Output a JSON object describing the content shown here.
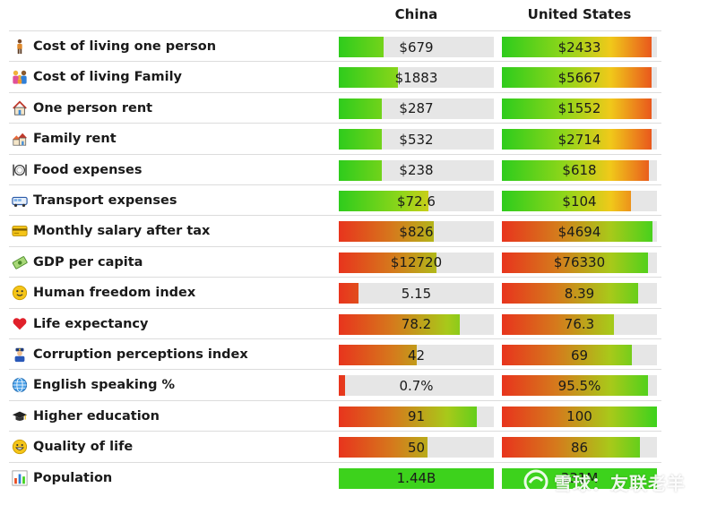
{
  "columns": [
    "China",
    "United States"
  ],
  "colors": {
    "cost_gradient": "linear-gradient(90deg,#2ecc1c 0%,#8ed61a 40%,#f0c91a 70%,#e8491d 100%)",
    "benefit_gradient": "linear-gradient(90deg,#e8341d 0%,#d57a1c 35%,#a8c91a 70%,#3dd21c 100%)",
    "solid_green": "#3dd21c",
    "track": "#e6e6e6"
  },
  "rows": [
    {
      "label": "Cost of living one person",
      "icon": "person-standing-icon",
      "kind": "cost",
      "china": {
        "value": "$679",
        "fill": 0.29
      },
      "us": {
        "value": "$2433",
        "fill": 0.965
      }
    },
    {
      "label": "Cost of living Family",
      "icon": "family-icon",
      "kind": "cost",
      "china": {
        "value": "$1883",
        "fill": 0.38
      },
      "us": {
        "value": "$5667",
        "fill": 0.965
      }
    },
    {
      "label": "One person rent",
      "icon": "house-icon",
      "kind": "cost",
      "china": {
        "value": "$287",
        "fill": 0.28
      },
      "us": {
        "value": "$1552",
        "fill": 0.965
      }
    },
    {
      "label": "Family rent",
      "icon": "houses-icon",
      "kind": "cost",
      "china": {
        "value": "$532",
        "fill": 0.28
      },
      "us": {
        "value": "$2714",
        "fill": 0.965
      }
    },
    {
      "label": "Food expenses",
      "icon": "plate-cutlery-icon",
      "kind": "cost",
      "china": {
        "value": "$238",
        "fill": 0.28
      },
      "us": {
        "value": "$618",
        "fill": 0.95
      }
    },
    {
      "label": "Transport expenses",
      "icon": "bus-icon",
      "kind": "cost",
      "china": {
        "value": "$72.6",
        "fill": 0.58
      },
      "us": {
        "value": "$104",
        "fill": 0.83
      }
    },
    {
      "label": "Monthly salary after tax",
      "icon": "credit-card-icon",
      "kind": "benefit",
      "china": {
        "value": "$826",
        "fill": 0.61
      },
      "us": {
        "value": "$4694",
        "fill": 0.97
      }
    },
    {
      "label": "GDP per capita",
      "icon": "money-icon",
      "kind": "benefit",
      "china": {
        "value": "$12720",
        "fill": 0.63
      },
      "us": {
        "value": "$76330",
        "fill": 0.94
      }
    },
    {
      "label": "Human freedom index",
      "icon": "smiley-face-icon",
      "kind": "benefit",
      "china": {
        "value": "5.15",
        "fill": 0.13
      },
      "us": {
        "value": "8.39",
        "fill": 0.88
      }
    },
    {
      "label": "Life expectancy",
      "icon": "heart-icon",
      "kind": "benefit",
      "china": {
        "value": "78.2",
        "fill": 0.78
      },
      "us": {
        "value": "76.3",
        "fill": 0.72
      }
    },
    {
      "label": "Corruption perceptions index",
      "icon": "police-officer-icon",
      "kind": "benefit",
      "china": {
        "value": "42",
        "fill": 0.5
      },
      "us": {
        "value": "69",
        "fill": 0.84
      }
    },
    {
      "label": "English speaking %",
      "icon": "globe-icon",
      "kind": "benefit",
      "china": {
        "value": "0.7%",
        "fill": 0.04
      },
      "us": {
        "value": "95.5%",
        "fill": 0.94
      }
    },
    {
      "label": "Higher education",
      "icon": "graduation-cap-icon",
      "kind": "benefit",
      "china": {
        "value": "91",
        "fill": 0.89
      },
      "us": {
        "value": "100",
        "fill": 1.0
      }
    },
    {
      "label": "Quality of life",
      "icon": "grinning-face-icon",
      "kind": "benefit",
      "china": {
        "value": "50",
        "fill": 0.57
      },
      "us": {
        "value": "86",
        "fill": 0.89
      }
    },
    {
      "label": "Population",
      "icon": "bar-chart-icon",
      "kind": "solid",
      "china": {
        "value": "1.44B",
        "fill": 1.0
      },
      "us": {
        "value": "331M",
        "fill": 1.0
      }
    }
  ],
  "watermark": {
    "text": "雪球：友联老羊",
    "icon": "snowball-logo-icon"
  }
}
